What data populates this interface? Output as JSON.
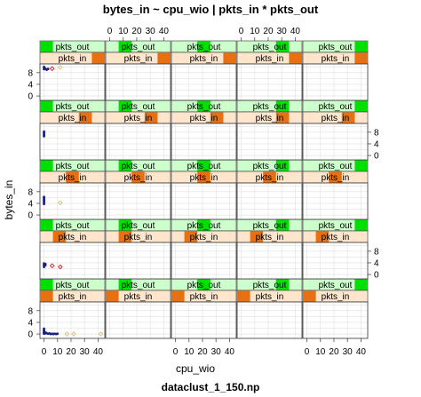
{
  "chart_data": {
    "type": "scatter",
    "title": "bytes_in ~ cpu_wio | pkts_in * pkts_out",
    "subtitle": "dataclust_1_150.np",
    "xlabel": "cpu_wio",
    "ylabel": "bytes_in",
    "x_ticks": [
      "0",
      "10",
      "20",
      "30",
      "40"
    ],
    "y_ticks": [
      "0",
      "4",
      "8"
    ],
    "xlim": [
      -3,
      45
    ],
    "ylim": [
      -1.5,
      11
    ],
    "strip_labels": {
      "outer": "pkts_out",
      "inner": "pkts_in"
    },
    "colors": {
      "outer_strip_bg": "#ccffcc",
      "outer_strip_bar": "#00e000",
      "inner_strip_bg": "#ffe5cc",
      "inner_strip_bar": "#e87010",
      "point_main": "#1a237e",
      "point_alt1": "#cc2222",
      "point_alt2": "#d8c070",
      "grid": "#e0e0e0"
    },
    "layout": {
      "columns": 5,
      "rows": 5
    },
    "panels": [
      {
        "col": 0,
        "row": 0,
        "inner_bar": [
          0.0,
          0.2
        ],
        "outer_bar": [
          0.0,
          0.2
        ],
        "points": [
          [
            0,
            0.1
          ],
          [
            0,
            0.3
          ],
          [
            0,
            0.5
          ],
          [
            0,
            0.8
          ],
          [
            0,
            1.1
          ],
          [
            0,
            1.4
          ],
          [
            0,
            1.8
          ],
          [
            1,
            0.2
          ],
          [
            1,
            0.5
          ],
          [
            2,
            0.3
          ],
          [
            3,
            0.1
          ],
          [
            4,
            0.2
          ],
          [
            5,
            0
          ],
          [
            6,
            0.1
          ],
          [
            7,
            0
          ],
          [
            8,
            0.1
          ],
          [
            9,
            0
          ],
          [
            10,
            0.1
          ]
        ],
        "markers": [
          [
            17,
            0,
            "alt2"
          ],
          [
            22,
            0,
            "alt2"
          ],
          [
            42,
            0,
            "alt2"
          ]
        ]
      },
      {
        "col": 0,
        "row": 1,
        "inner_bar": [
          0.2,
          0.4
        ],
        "outer_bar": [
          0.2,
          0.4
        ],
        "points": [
          [
            0,
            2.6
          ],
          [
            0,
            3.0
          ],
          [
            0,
            3.4
          ],
          [
            0,
            3.8
          ],
          [
            1,
            3.2
          ],
          [
            1,
            3.6
          ]
        ],
        "markers": [
          [
            6,
            3.0,
            "alt1"
          ],
          [
            12,
            2.6,
            "alt1"
          ]
        ]
      },
      {
        "col": 0,
        "row": 2,
        "inner_bar": [
          0.4,
          0.6
        ],
        "outer_bar": [
          0.4,
          0.6
        ],
        "points": [
          [
            0,
            3.8
          ],
          [
            0,
            4.3
          ],
          [
            0,
            4.7
          ],
          [
            0,
            5.1
          ],
          [
            0,
            5.5
          ],
          [
            0,
            5.9
          ],
          [
            0,
            6.2
          ]
        ],
        "markers": [
          [
            12,
            4.2,
            "alt2"
          ]
        ]
      },
      {
        "col": 0,
        "row": 3,
        "inner_bar": [
          0.6,
          0.8
        ],
        "outer_bar": [
          0.6,
          0.8
        ],
        "points": [
          [
            0,
            6.6
          ],
          [
            0,
            7.0
          ],
          [
            0,
            7.4
          ],
          [
            0,
            7.8
          ],
          [
            0,
            8.2
          ]
        ],
        "markers": []
      },
      {
        "col": 0,
        "row": 4,
        "inner_bar": [
          0.8,
          1.0
        ],
        "outer_bar": [
          0.8,
          1.0
        ],
        "points": [
          [
            0,
            9.2
          ],
          [
            0,
            9.6
          ],
          [
            0,
            10.0
          ],
          [
            1,
            9.4
          ],
          [
            2,
            9.0
          ],
          [
            3,
            9.3
          ]
        ],
        "markers": [
          [
            6,
            9.4,
            "alt1"
          ],
          [
            12,
            9.8,
            "alt2"
          ]
        ]
      }
    ]
  }
}
